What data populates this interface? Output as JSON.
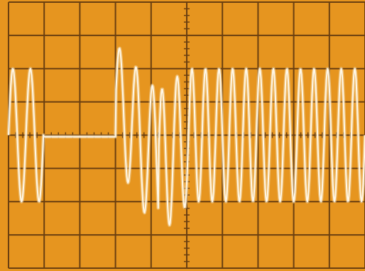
{
  "screen": {
    "background": "#e6951f",
    "grid_color": "#6a3f10",
    "trace_color": "#fff8e8",
    "trace_glow": "#f2d9a8"
  },
  "chart_data": {
    "type": "line",
    "title": "",
    "xlabel": "",
    "ylabel": "",
    "xlim": [
      0,
      10
    ],
    "ylim": [
      -4,
      4
    ],
    "divisions": {
      "x": 10,
      "y": 8
    },
    "grid": true,
    "minor_ticks_per_division": 5,
    "series": [
      {
        "kind": "burst-sinewave",
        "segments": [
          {
            "x_start": 0.0,
            "x_end": 0.98,
            "cycles": 2,
            "amplitude_div": 2.0,
            "center_div": 0.0
          },
          {
            "x_start": 0.98,
            "x_end": 3.0,
            "cycles": 0,
            "level_div": -0.05
          },
          {
            "x_start": 3.0,
            "x_end": 4.2,
            "cycles": 2.6,
            "center_start_div": 1.0,
            "center_end_div": -0.9,
            "amplitude_start_div": 1.75,
            "amplitude_end_div": 2.2
          },
          {
            "x_start": 4.2,
            "x_end": 5.05,
            "cycles": 2,
            "center_start_div": -0.9,
            "center_end_div": 0.0,
            "amplitude_start_div": 2.2,
            "amplitude_end_div": 2.05
          },
          {
            "x_start": 5.05,
            "x_end": 10.0,
            "cycles": 13,
            "amplitude_div": 2.0,
            "center_div": 0.0
          }
        ]
      }
    ]
  }
}
